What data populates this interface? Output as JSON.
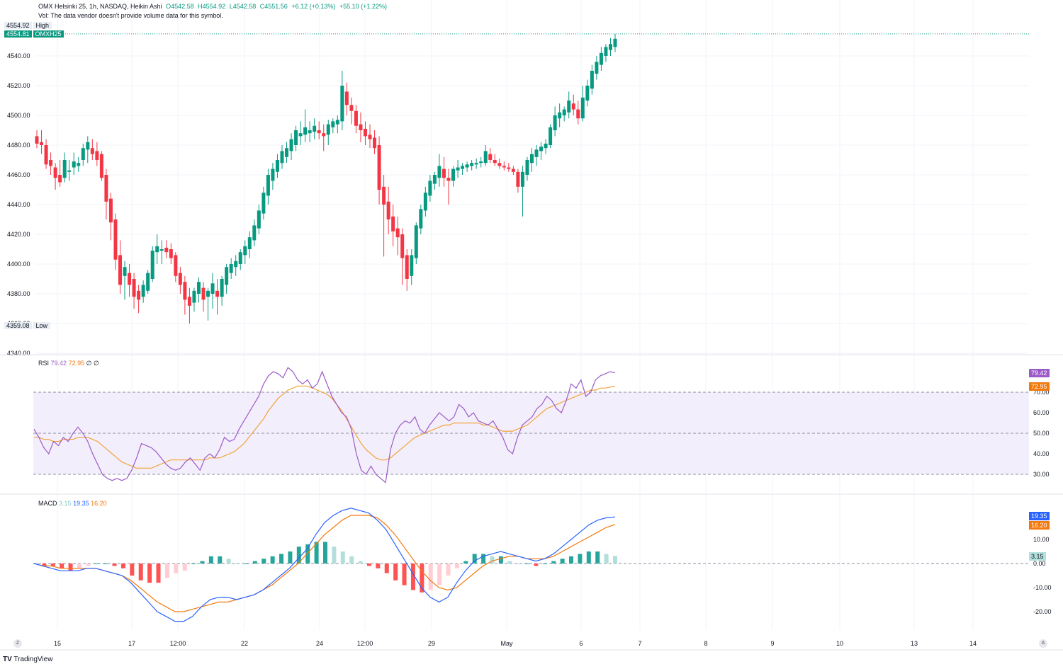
{
  "header": {
    "symbol_line": "OMX Helsinki 25, 1h, NASDAQ, Heikin Ashi",
    "open": "O4542.58",
    "high": "H4554.92",
    "low": "L4542.58",
    "close": "C4551.56",
    "change": "+6.12 (+0.13%)",
    "change2": "+55.10 (+1.22%)",
    "vol_note": "Vol: The data vendor doesn't provide volume data for this symbol."
  },
  "price_badges": {
    "high_value": "4554.92",
    "high_label": "High",
    "last_value": "4554.81",
    "last_label": "OMXH25",
    "low_value": "4359.08",
    "low_label": "Low"
  },
  "rsi": {
    "label": "RSI",
    "value1": "79.42",
    "value2": "72.95",
    "extra1": "∅",
    "extra2": "∅"
  },
  "macd": {
    "label": "MACD",
    "hist_value": "3.15",
    "macd_value": "19.35",
    "signal_value": "16.20"
  },
  "footer": {
    "logo_text": "TradingView",
    "left_btn": "Z",
    "right_btn": "A"
  },
  "colors": {
    "up": "#089981",
    "down": "#f23645",
    "rsi_line": "#9c5ac8",
    "rsi_ma": "#f2a33a",
    "macd_line": "#2962ff",
    "signal_line": "#f2790d"
  },
  "chart_data": {
    "type": "candlestick",
    "price_axis": {
      "ticks": [
        "4540.00",
        "4520.00",
        "4500.00",
        "4480.00",
        "4460.00",
        "4440.00",
        "4420.00",
        "4400.00",
        "4380.00",
        "4360.00",
        "4340.00"
      ],
      "range": [
        4340,
        4560
      ]
    },
    "x_axis": {
      "tick_labels": [
        "15",
        "17",
        "12:00",
        "22",
        "24",
        "12:00",
        "29",
        "May",
        "6",
        "7",
        "8",
        "9",
        "10",
        "13",
        "14"
      ]
    },
    "candles": [
      [
        4486,
        4490,
        4478,
        4481
      ],
      [
        4482,
        4490,
        4474,
        4480
      ],
      [
        4480,
        4484,
        4464,
        4467
      ],
      [
        4470,
        4475,
        4460,
        4466
      ],
      [
        4465,
        4468,
        4450,
        4458
      ],
      [
        4460,
        4470,
        4452,
        4455
      ],
      [
        4458,
        4475,
        4455,
        4470
      ],
      [
        4462,
        4470,
        4456,
        4463
      ],
      [
        4465,
        4475,
        4460,
        4469
      ],
      [
        4466,
        4472,
        4462,
        4468
      ],
      [
        4470,
        4481,
        4466,
        4478
      ],
      [
        4477,
        4486,
        4468,
        4482
      ],
      [
        4478,
        4484,
        4470,
        4474
      ],
      [
        4476,
        4482,
        4466,
        4470
      ],
      [
        4474,
        4476,
        4456,
        4458
      ],
      [
        4460,
        4464,
        4430,
        4442
      ],
      [
        4444,
        4448,
        4416,
        4428
      ],
      [
        4430,
        4434,
        4396,
        4403
      ],
      [
        4406,
        4416,
        4380,
        4386
      ],
      [
        4392,
        4402,
        4376,
        4398
      ],
      [
        4394,
        4400,
        4378,
        4386
      ],
      [
        4390,
        4394,
        4370,
        4378
      ],
      [
        4382,
        4386,
        4367,
        4376
      ],
      [
        4378,
        4389,
        4374,
        4386
      ],
      [
        4382,
        4396,
        4380,
        4394
      ],
      [
        4390,
        4412,
        4388,
        4409
      ],
      [
        4408,
        4420,
        4400,
        4412
      ],
      [
        4409,
        4416,
        4400,
        4410
      ],
      [
        4411,
        4416,
        4404,
        4408
      ],
      [
        4410,
        4414,
        4400,
        4404
      ],
      [
        4406,
        4408,
        4388,
        4392
      ],
      [
        4394,
        4398,
        4380,
        4386
      ],
      [
        4388,
        4392,
        4366,
        4376
      ],
      [
        4378,
        4384,
        4360,
        4372
      ],
      [
        4374,
        4384,
        4368,
        4382
      ],
      [
        4380,
        4391,
        4374,
        4388
      ],
      [
        4384,
        4388,
        4368,
        4376
      ],
      [
        4378,
        4384,
        4362,
        4382
      ],
      [
        4380,
        4394,
        4370,
        4387
      ],
      [
        4382,
        4390,
        4366,
        4378
      ],
      [
        4378,
        4392,
        4372,
        4390
      ],
      [
        4386,
        4400,
        4380,
        4398
      ],
      [
        4394,
        4404,
        4390,
        4400
      ],
      [
        4398,
        4406,
        4392,
        4402
      ],
      [
        4400,
        4410,
        4396,
        4408
      ],
      [
        4406,
        4416,
        4400,
        4412
      ],
      [
        4410,
        4422,
        4404,
        4418
      ],
      [
        4416,
        4430,
        4412,
        4426
      ],
      [
        4424,
        4440,
        4420,
        4436
      ],
      [
        4434,
        4452,
        4430,
        4448
      ],
      [
        4446,
        4464,
        4440,
        4460
      ],
      [
        4456,
        4468,
        4450,
        4464
      ],
      [
        4462,
        4474,
        4458,
        4470
      ],
      [
        4468,
        4480,
        4464,
        4476
      ],
      [
        4472,
        4482,
        4468,
        4478
      ],
      [
        4476,
        4488,
        4470,
        4484
      ],
      [
        4480,
        4493,
        4476,
        4490
      ],
      [
        4486,
        4496,
        4480,
        4488
      ],
      [
        4487,
        4504,
        4482,
        4492
      ],
      [
        4488,
        4496,
        4482,
        4490
      ],
      [
        4489,
        4498,
        4484,
        4493
      ],
      [
        4490,
        4496,
        4484,
        4488
      ],
      [
        4488,
        4494,
        4476,
        4486
      ],
      [
        4487,
        4497,
        4480,
        4494
      ],
      [
        4492,
        4498,
        4488,
        4496
      ],
      [
        4494,
        4500,
        4488,
        4497
      ],
      [
        4496,
        4530,
        4490,
        4520
      ],
      [
        4516,
        4522,
        4500,
        4507
      ],
      [
        4507,
        4512,
        4494,
        4503
      ],
      [
        4503,
        4507,
        4488,
        4493
      ],
      [
        4494,
        4502,
        4482,
        4490
      ],
      [
        4491,
        4496,
        4480,
        4486
      ],
      [
        4487,
        4494,
        4478,
        4484
      ],
      [
        4485,
        4490,
        4474,
        4478
      ],
      [
        4480,
        4486,
        4440,
        4450
      ],
      [
        4452,
        4460,
        4405,
        4440
      ],
      [
        4442,
        4452,
        4420,
        4430
      ],
      [
        4432,
        4440,
        4412,
        4422
      ],
      [
        4424,
        4432,
        4406,
        4418
      ],
      [
        4420,
        4424,
        4386,
        4404
      ],
      [
        4406,
        4410,
        4382,
        4390
      ],
      [
        4392,
        4410,
        4386,
        4406
      ],
      [
        4404,
        4428,
        4400,
        4426
      ],
      [
        4424,
        4440,
        4420,
        4437
      ],
      [
        4436,
        4452,
        4432,
        4448
      ],
      [
        4446,
        4460,
        4442,
        4456
      ],
      [
        4454,
        4462,
        4450,
        4460
      ],
      [
        4458,
        4474,
        4452,
        4466
      ],
      [
        4464,
        4472,
        4452,
        4458
      ],
      [
        4458,
        4464,
        4440,
        4456
      ],
      [
        4456,
        4466,
        4452,
        4464
      ],
      [
        4463,
        4470,
        4458,
        4465
      ],
      [
        4464,
        4468,
        4460,
        4466
      ],
      [
        4465,
        4469,
        4462,
        4467
      ],
      [
        4466,
        4470,
        4463,
        4468
      ],
      [
        4467,
        4471,
        4464,
        4468
      ],
      [
        4468,
        4472,
        4465,
        4469
      ],
      [
        4468,
        4480,
        4466,
        4476
      ],
      [
        4474,
        4478,
        4468,
        4470
      ],
      [
        4470,
        4474,
        4466,
        4468
      ],
      [
        4468,
        4471,
        4464,
        4466
      ],
      [
        4466,
        4469,
        4463,
        4465
      ],
      [
        4465,
        4468,
        4462,
        4464
      ],
      [
        4464,
        4466,
        4460,
        4462
      ],
      [
        4462,
        4464,
        4448,
        4452
      ],
      [
        4452,
        4466,
        4432,
        4462
      ],
      [
        4460,
        4472,
        4456,
        4470
      ],
      [
        4468,
        4478,
        4462,
        4474
      ],
      [
        4472,
        4480,
        4466,
        4477
      ],
      [
        4476,
        4482,
        4470,
        4479
      ],
      [
        4478,
        4484,
        4474,
        4481
      ],
      [
        4480,
        4494,
        4478,
        4492
      ],
      [
        4490,
        4506,
        4486,
        4500
      ],
      [
        4498,
        4508,
        4492,
        4502
      ],
      [
        4500,
        4506,
        4496,
        4504
      ],
      [
        4502,
        4516,
        4498,
        4510
      ],
      [
        4508,
        4514,
        4500,
        4504
      ],
      [
        4504,
        4510,
        4494,
        4498
      ],
      [
        4498,
        4520,
        4496,
        4512
      ],
      [
        4510,
        4524,
        4506,
        4520
      ],
      [
        4518,
        4534,
        4514,
        4530
      ],
      [
        4528,
        4540,
        4524,
        4536
      ],
      [
        4534,
        4546,
        4530,
        4542
      ],
      [
        4540,
        4548,
        4536,
        4546
      ],
      [
        4544,
        4552,
        4540,
        4548
      ],
      [
        4546,
        4554.92,
        4542.58,
        4551.56
      ]
    ],
    "rsi": {
      "overbought": 70,
      "oversold": 30,
      "axis_ticks": [
        "70.00",
        "60.00",
        "50.00",
        "40.00",
        "30.00"
      ],
      "rsi_values": [
        52,
        48,
        43,
        40,
        46,
        44,
        48,
        46,
        50,
        53,
        50,
        46,
        40,
        35,
        30,
        28,
        27,
        28,
        27,
        28,
        32,
        38,
        45,
        44,
        43,
        41,
        38,
        35,
        33,
        32,
        33,
        36,
        38,
        35,
        32,
        38,
        40,
        38,
        42,
        48,
        46,
        47,
        52,
        56,
        60,
        64,
        68,
        74,
        78,
        80,
        79,
        77,
        82,
        80,
        76,
        74,
        76,
        72,
        74,
        80,
        74,
        68,
        64,
        60,
        58,
        52,
        40,
        32,
        30,
        34,
        30,
        28,
        26,
        42,
        50,
        54,
        56,
        55,
        58,
        52,
        50,
        54,
        57,
        60,
        58,
        56,
        58,
        64,
        62,
        58,
        60,
        56,
        55,
        54,
        56,
        52,
        48,
        42,
        40,
        48,
        54,
        56,
        58,
        62,
        64,
        68,
        66,
        62,
        60,
        66,
        74,
        72,
        76,
        68,
        70,
        76,
        78,
        79,
        80,
        79.42
      ],
      "ma_values": [
        48,
        48,
        47,
        47,
        46,
        46,
        47,
        47,
        47,
        48,
        48,
        48,
        47,
        46,
        44,
        42,
        40,
        38,
        36,
        35,
        34,
        33,
        33,
        33,
        33,
        34,
        35,
        36,
        37,
        37,
        37,
        37,
        37,
        37,
        37,
        37,
        38,
        38,
        38,
        39,
        40,
        41,
        43,
        45,
        48,
        51,
        54,
        57,
        61,
        64,
        67,
        69,
        71,
        72,
        73,
        73,
        73,
        72,
        71,
        70,
        69,
        67,
        64,
        61,
        57,
        53,
        49,
        45,
        42,
        40,
        38,
        37,
        37,
        38,
        40,
        42,
        44,
        46,
        48,
        49,
        50,
        51,
        52,
        53,
        54,
        54,
        55,
        55,
        55,
        55,
        55,
        55,
        54,
        54,
        53,
        52,
        51,
        51,
        51,
        52,
        53,
        54,
        56,
        58,
        60,
        62,
        63,
        64,
        65,
        66,
        67,
        68,
        69,
        70,
        71,
        71,
        72,
        72,
        72.5,
        72.95
      ]
    },
    "macd": {
      "axis_ticks": [
        "10.00",
        "0.00",
        "-10.00",
        "-20.00"
      ],
      "macd_values": [
        0,
        -1,
        -2,
        -3,
        -3,
        -3,
        -2,
        -2,
        -3,
        -4,
        -5,
        -8,
        -12,
        -16,
        -20,
        -22,
        -24,
        -24,
        -22,
        -18,
        -15,
        -14,
        -14,
        -15,
        -14,
        -13,
        -11,
        -8,
        -5,
        -2,
        2,
        6,
        12,
        17,
        20,
        22,
        23,
        22,
        21,
        18,
        14,
        8,
        2,
        -4,
        -10,
        -14,
        -16,
        -14,
        -8,
        -3,
        1,
        3,
        4,
        5,
        4,
        3,
        2,
        1,
        2,
        4,
        7,
        10,
        13,
        16,
        18,
        19,
        19.35
      ],
      "signal_values": [
        0,
        -1,
        -1,
        -2,
        -2,
        -2,
        -2,
        -2,
        -3,
        -4,
        -5,
        -7,
        -10,
        -13,
        -16,
        -18,
        -20,
        -20,
        -19,
        -18,
        -17,
        -16,
        -16,
        -15,
        -14,
        -13,
        -11,
        -9,
        -6,
        -3,
        0,
        4,
        8,
        12,
        15,
        18,
        20,
        20,
        20,
        19,
        16,
        12,
        7,
        2,
        -3,
        -7,
        -10,
        -11,
        -10,
        -7,
        -4,
        -1,
        1,
        2,
        3,
        3,
        2,
        2,
        2,
        3,
        5,
        7,
        9,
        11,
        13,
        15,
        16.2
      ],
      "hist_values": [
        0,
        -1,
        -1,
        -2,
        -3,
        -2,
        -1,
        0,
        0,
        -1,
        -2,
        -5,
        -7,
        -8,
        -8,
        -6,
        -4,
        -3,
        0,
        1,
        3,
        3,
        2,
        0,
        0,
        1,
        2,
        3,
        4,
        5,
        7,
        8,
        9,
        9,
        7,
        5,
        3,
        1,
        -1,
        -2,
        -4,
        -7,
        -9,
        -11,
        -12,
        -11,
        -9,
        -5,
        -2,
        1,
        4,
        4,
        3,
        3,
        1,
        0,
        0,
        -1,
        0,
        1,
        2,
        3,
        4,
        5,
        5,
        4,
        3.15
      ]
    }
  }
}
